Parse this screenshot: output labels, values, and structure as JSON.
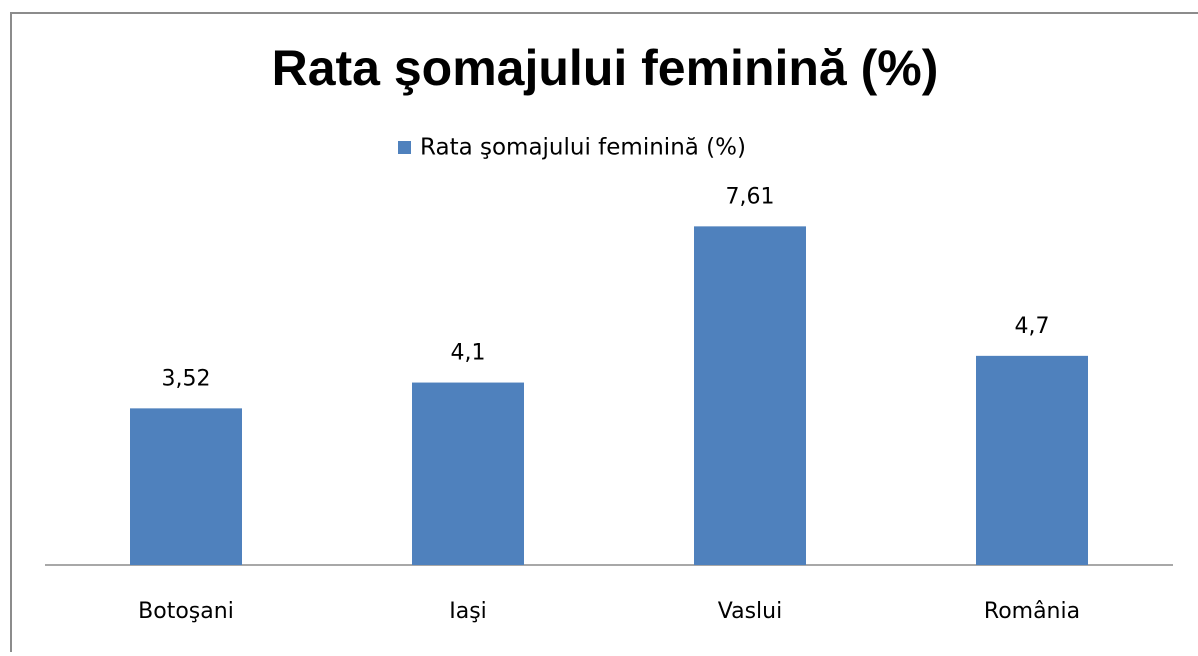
{
  "chart_data": {
    "type": "bar",
    "title": "Rata şomajului feminină (%)",
    "categories": [
      "Botoşani",
      "Iaşi",
      "Vaslui",
      "România"
    ],
    "series": [
      {
        "name": "Rata şomajului feminină (%)",
        "color": "#4f81bd",
        "values": [
          3.52,
          4.1,
          7.61,
          4.7
        ],
        "value_labels": [
          "3,52",
          "4,1",
          "7,61",
          "4,7"
        ]
      }
    ],
    "ylim": [
      0,
      10
    ],
    "legend": "top"
  }
}
